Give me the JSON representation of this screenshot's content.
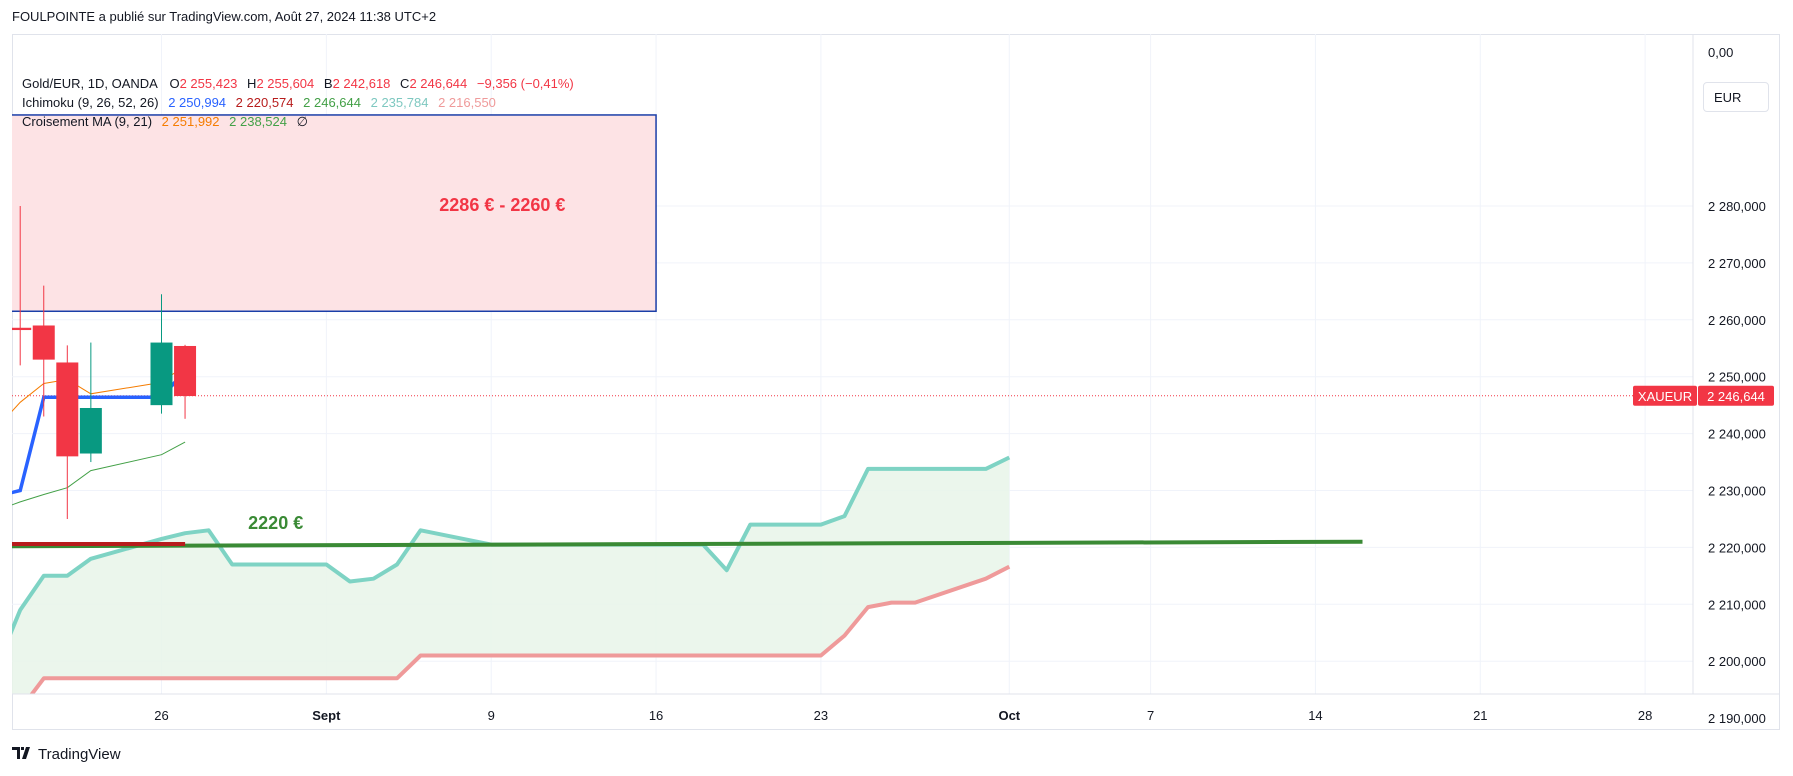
{
  "header": {
    "text": "FOULPOINTE a publié sur TradingView.com, Août 27, 2024 11:38 UTC+2"
  },
  "currency_button": {
    "label": "EUR"
  },
  "footer": {
    "brand": "TradingView"
  },
  "legend": {
    "symbol": {
      "name": "Gold/EUR, 1D, OANDA",
      "open_label": "O",
      "open_value": "2 255,423",
      "high_label": "H",
      "high_value": "2 255,604",
      "low_label": "B",
      "low_value": "2 242,618",
      "close_label": "C",
      "close_value": "2 246,644",
      "change": "−9,356 (−0,41%)"
    },
    "ichimoku": {
      "name": "Ichimoku (9, 26, 52, 26)",
      "values": [
        "2 250,994",
        "2 220,574",
        "2 246,644",
        "2 235,784",
        "2 216,550"
      ]
    },
    "ma_cross": {
      "name": "Croisement MA (9, 21)",
      "values": [
        "2 251,992",
        "2 238,524"
      ],
      "symbol": "∅"
    }
  },
  "colors": {
    "up": "#089981",
    "down": "#f23645",
    "tenkan": "#2962ff",
    "kijun": "#b71c1c",
    "span_a": "#7ed3c4",
    "span_b": "#ef9a9a",
    "ma_fast": "#f57c00",
    "ma_slow": "#43a047",
    "zone_fill": "#fde3e5",
    "zone_border": "#1a3ea8",
    "hline": "#3a8a35",
    "cloud": "#e8f5e9"
  },
  "chart_data": {
    "type": "candlestick",
    "y_axis": {
      "min": 2180,
      "max": 2300,
      "ticks": [
        2190,
        2200,
        2210,
        2220,
        2230,
        2240,
        2250,
        2260,
        2270,
        2280
      ],
      "tick_labels": [
        "2 190,000",
        "2 200,000",
        "2 210,000",
        "2 220,000",
        "2 230,000",
        "2 240,000",
        "2 250,000",
        "2 260,000",
        "2 270,000",
        "2 280,000"
      ],
      "top_label": "0,00"
    },
    "x_axis": {
      "start": "2024-08-20",
      "ticks": [
        {
          "date": "2024-08-26",
          "label": "26",
          "bold": false
        },
        {
          "date": "2024-09-02",
          "label": "Sept",
          "bold": true
        },
        {
          "date": "2024-09-09",
          "label": "9",
          "bold": false
        },
        {
          "date": "2024-09-16",
          "label": "16",
          "bold": false
        },
        {
          "date": "2024-09-23",
          "label": "23",
          "bold": false
        },
        {
          "date": "2024-10-01",
          "label": "Oct",
          "bold": true
        },
        {
          "date": "2024-10-07",
          "label": "7",
          "bold": false
        },
        {
          "date": "2024-10-14",
          "label": "14",
          "bold": false
        },
        {
          "date": "2024-10-21",
          "label": "21",
          "bold": false
        },
        {
          "date": "2024-10-28",
          "label": "28",
          "bold": false
        }
      ]
    },
    "candles": [
      {
        "date": "2024-08-20",
        "o": 2258.6,
        "h": 2280.0,
        "l": 2252.0,
        "c": 2258.2
      },
      {
        "date": "2024-08-21",
        "o": 2259.0,
        "h": 2266.0,
        "l": 2243.0,
        "c": 2253.0
      },
      {
        "date": "2024-08-22",
        "o": 2252.5,
        "h": 2255.5,
        "l": 2225.0,
        "c": 2236.0
      },
      {
        "date": "2024-08-23",
        "o": 2236.5,
        "h": 2256.0,
        "l": 2235.0,
        "c": 2244.5
      },
      {
        "date": "2024-08-26",
        "o": 2245.0,
        "h": 2264.5,
        "l": 2243.5,
        "c": 2256.0
      },
      {
        "date": "2024-08-27",
        "o": 2255.4,
        "h": 2255.6,
        "l": 2242.6,
        "c": 2246.6
      }
    ],
    "series": [
      {
        "name": "tenkan",
        "points": [
          [
            "2024-08-19",
            2229.0
          ],
          [
            "2024-08-20",
            2230.0
          ],
          [
            "2024-08-21",
            2246.4
          ],
          [
            "2024-08-22",
            2246.4
          ],
          [
            "2024-08-23",
            2246.4
          ],
          [
            "2024-08-26",
            2246.4
          ],
          [
            "2024-08-27",
            2251.0
          ]
        ]
      },
      {
        "name": "kijun",
        "points": [
          [
            "2024-08-19",
            2220.6
          ],
          [
            "2024-08-27",
            2220.6
          ]
        ]
      },
      {
        "name": "ma_fast",
        "points": [
          [
            "2024-08-19",
            2241.0
          ],
          [
            "2024-08-20",
            2245.5
          ],
          [
            "2024-08-21",
            2248.8
          ],
          [
            "2024-08-22",
            2249.5
          ],
          [
            "2024-08-23",
            2247.0
          ],
          [
            "2024-08-26",
            2249.0
          ],
          [
            "2024-08-27",
            2252.0
          ]
        ]
      },
      {
        "name": "ma_slow",
        "points": [
          [
            "2024-08-19",
            2226.5
          ],
          [
            "2024-08-20",
            2228.0
          ],
          [
            "2024-08-21",
            2229.3
          ],
          [
            "2024-08-22",
            2230.5
          ],
          [
            "2024-08-23",
            2233.5
          ],
          [
            "2024-08-26",
            2236.3
          ],
          [
            "2024-08-27",
            2238.5
          ]
        ]
      },
      {
        "name": "span_a",
        "points": [
          [
            "2024-08-19",
            2199.0
          ],
          [
            "2024-08-20",
            2209.0
          ],
          [
            "2024-08-21",
            2215.0
          ],
          [
            "2024-08-22",
            2215.0
          ],
          [
            "2024-08-23",
            2218.0
          ],
          [
            "2024-08-26",
            2221.5
          ],
          [
            "2024-08-27",
            2222.5
          ],
          [
            "2024-08-28",
            2223.0
          ],
          [
            "2024-08-29",
            2217.0
          ],
          [
            "2024-08-30",
            2217.0
          ],
          [
            "2024-09-02",
            2217.0
          ],
          [
            "2024-09-03",
            2214.0
          ],
          [
            "2024-09-04",
            2214.5
          ],
          [
            "2024-09-05",
            2217.0
          ],
          [
            "2024-09-06",
            2223.0
          ],
          [
            "2024-09-09",
            2220.5
          ],
          [
            "2024-09-10",
            2220.5
          ],
          [
            "2024-09-18",
            2220.5
          ],
          [
            "2024-09-19",
            2216.0
          ],
          [
            "2024-09-20",
            2224.0
          ],
          [
            "2024-09-23",
            2224.0
          ],
          [
            "2024-09-24",
            2225.5
          ],
          [
            "2024-09-25",
            2233.8
          ],
          [
            "2024-09-26",
            2233.8
          ],
          [
            "2024-09-27",
            2233.8
          ],
          [
            "2024-09-30",
            2233.8
          ],
          [
            "2024-10-01",
            2235.8
          ]
        ]
      },
      {
        "name": "span_b",
        "points": [
          [
            "2024-08-19",
            2187.0
          ],
          [
            "2024-08-20",
            2191.5
          ],
          [
            "2024-08-21",
            2197.0
          ],
          [
            "2024-08-22",
            2197.0
          ],
          [
            "2024-09-05",
            2197.0
          ],
          [
            "2024-09-06",
            2201.0
          ],
          [
            "2024-09-23",
            2201.0
          ],
          [
            "2024-09-24",
            2204.5
          ],
          [
            "2024-09-25",
            2209.5
          ],
          [
            "2024-09-26",
            2210.3
          ],
          [
            "2024-09-27",
            2210.3
          ],
          [
            "2024-09-30",
            2214.5
          ],
          [
            "2024-10-01",
            2216.6
          ]
        ]
      },
      {
        "name": "support_line",
        "points": [
          [
            "2024-08-19",
            2220.2
          ],
          [
            "2024-10-16",
            2221.0
          ]
        ]
      }
    ],
    "last_price": {
      "value": 2246.644,
      "symbol_label": "XAUEUR",
      "value_label": "2 246,644"
    },
    "annotations": {
      "zone": {
        "label": "2286 € - 2260 €",
        "y_top": 2296,
        "y_bottom": 2261.5,
        "x_start": "2024-08-19",
        "x_end": "2024-09-16"
      },
      "level_label": {
        "text": "2220 €",
        "date": "2024-08-30",
        "y": 2224.5
      }
    }
  }
}
